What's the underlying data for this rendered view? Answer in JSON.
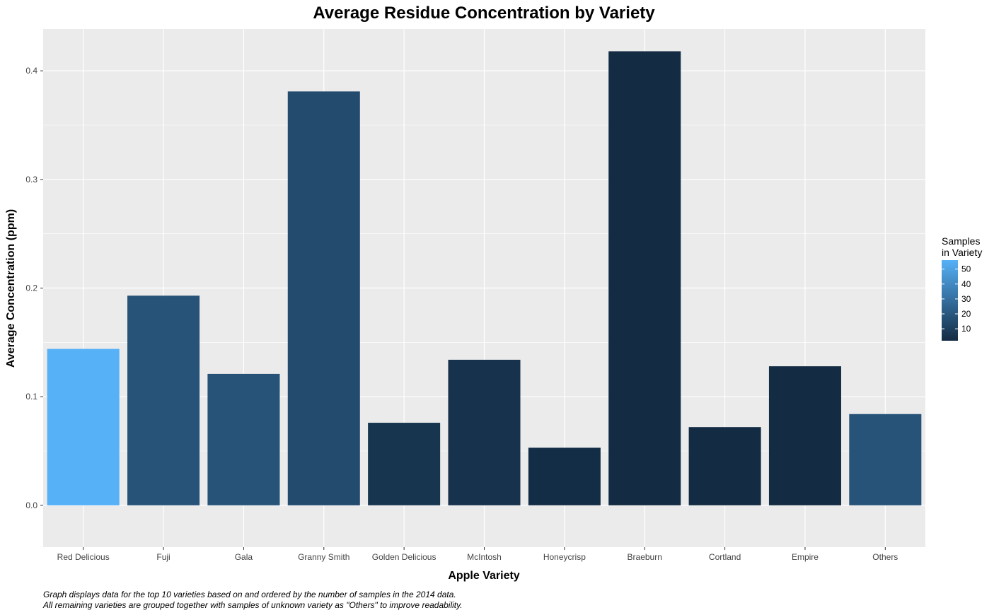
{
  "chart_data": {
    "type": "bar",
    "title": "Average Residue Concentration by Variety",
    "xlabel": "Apple Variety",
    "ylabel": "Average Concentration (ppm)",
    "categories": [
      "Red Delicious",
      "Fuji",
      "Gala",
      "Granny Smith",
      "Golden Delicious",
      "McIntosh",
      "Honeycrisp",
      "Braeburn",
      "Cortland",
      "Empire",
      "Others"
    ],
    "values": [
      0.144,
      0.193,
      0.121,
      0.381,
      0.076,
      0.134,
      0.053,
      0.418,
      0.072,
      0.128,
      0.084
    ],
    "fill_values": [
      56,
      18,
      18,
      15,
      6,
      5,
      3,
      2,
      2,
      2,
      18
    ],
    "ylim": [
      -0.0385,
      0.4385
    ],
    "yticks": [
      0.0,
      0.1,
      0.2,
      0.3,
      0.4
    ],
    "ytick_labels": [
      "0.0",
      "0.1",
      "0.2",
      "0.3",
      "0.4"
    ],
    "grid": true,
    "legend": {
      "title_lines": [
        "Samples",
        "in Variety"
      ],
      "placement": "right",
      "breaks": [
        10,
        20,
        30,
        40,
        50
      ],
      "range": [
        2,
        56
      ],
      "low_color": "#132B43",
      "high_color": "#56B1F7"
    },
    "caption_lines": [
      "Graph displays data for the top 10 varieties based on and ordered by the number of samples in the 2014 data.",
      "All remaining varieties are grouped together with samples of unknown variety as \"Others\"  to improve readability."
    ],
    "panel_background": "#EBEBEB",
    "grid_color": "#FFFFFF"
  }
}
